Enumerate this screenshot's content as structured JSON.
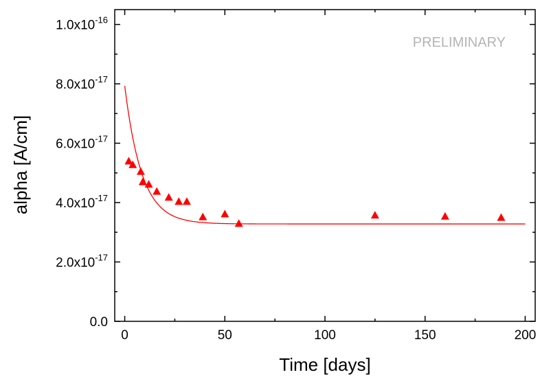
{
  "chart_data": {
    "type": "scatter",
    "xlabel": "Time [days]",
    "ylabel": "alpha [A/cm]",
    "annotation": "PRELIMINARY",
    "xlim": [
      -5,
      205
    ],
    "ylim": [
      0,
      1.05e-16
    ],
    "x_ticks": [
      {
        "value": 0,
        "label": "0"
      },
      {
        "value": 50,
        "label": "50"
      },
      {
        "value": 100,
        "label": "100"
      },
      {
        "value": 150,
        "label": "150"
      },
      {
        "value": 200,
        "label": "200"
      }
    ],
    "y_ticks": [
      {
        "value": 0,
        "mantissa": "0.0",
        "exponent": ""
      },
      {
        "value": 2e-17,
        "mantissa": "2.0x10",
        "exponent": "-17"
      },
      {
        "value": 4e-17,
        "mantissa": "4.0x10",
        "exponent": "-17"
      },
      {
        "value": 6e-17,
        "mantissa": "6.0x10",
        "exponent": "-17"
      },
      {
        "value": 8e-17,
        "mantissa": "8.0x10",
        "exponent": "-17"
      },
      {
        "value": 1e-16,
        "mantissa": "1.0x10",
        "exponent": "-16"
      }
    ],
    "series": [
      {
        "type": "scatter",
        "marker": "triangle",
        "color": "#ff0000",
        "points": [
          {
            "x": 2,
            "y": 5.4e-17
          },
          {
            "x": 4,
            "y": 5.28e-17
          },
          {
            "x": 8,
            "y": 5.05e-17
          },
          {
            "x": 9,
            "y": 4.7e-17
          },
          {
            "x": 12,
            "y": 4.62e-17
          },
          {
            "x": 16,
            "y": 4.38e-17
          },
          {
            "x": 22,
            "y": 4.18e-17
          },
          {
            "x": 27,
            "y": 4.04e-17
          },
          {
            "x": 31,
            "y": 4.04e-17
          },
          {
            "x": 39,
            "y": 3.52e-17
          },
          {
            "x": 50,
            "y": 3.62e-17
          },
          {
            "x": 57,
            "y": 3.3e-17
          },
          {
            "x": 125,
            "y": 3.58e-17
          },
          {
            "x": 160,
            "y": 3.54e-17
          },
          {
            "x": 188,
            "y": 3.5e-17
          }
        ]
      },
      {
        "type": "line",
        "color": "#ff0000",
        "function": "exponential_decay",
        "y0": 3.28e-17,
        "amplitude": 4.65e-17,
        "tau": 8.5,
        "x_range": [
          0,
          200
        ]
      }
    ]
  }
}
